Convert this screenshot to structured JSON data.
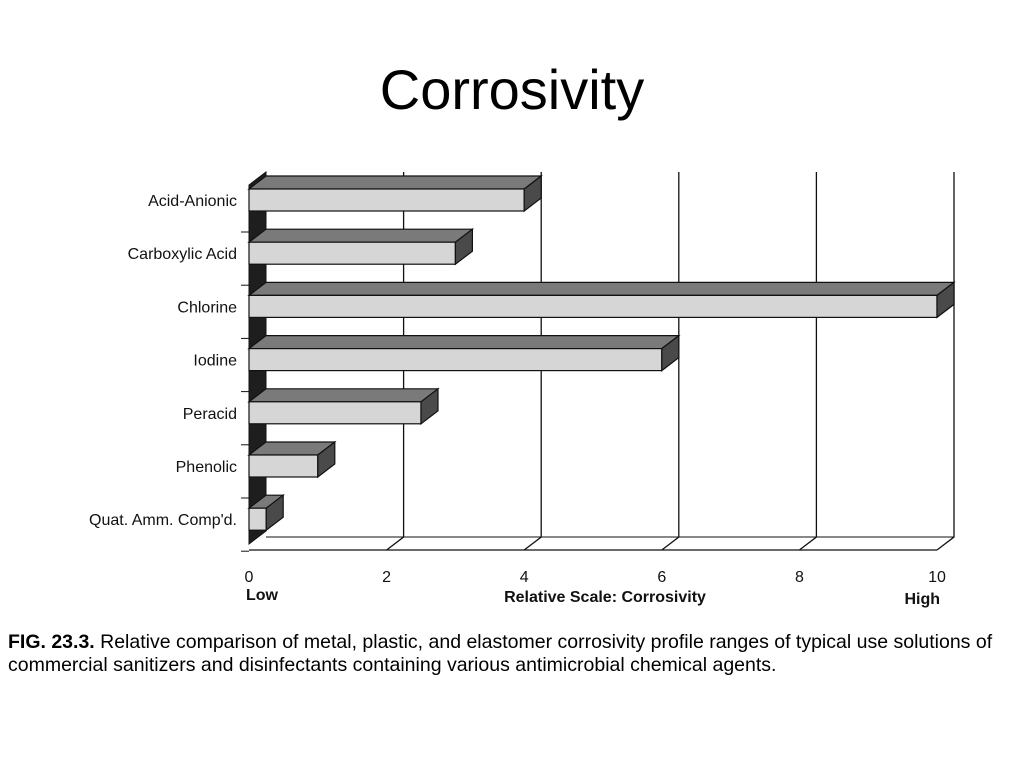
{
  "slide": {
    "title": "Corrosivity"
  },
  "caption": {
    "figure_number": "FIG. 23.3.",
    "text": " Relative comparison of metal, plastic, and elastomer corrosivity profile ranges of typical use solutions of commercial sanitizers and disinfectants containing various antimicrobial chemical agents."
  },
  "chart_data": {
    "type": "bar",
    "orientation": "horizontal",
    "style": "3d",
    "categories": [
      "Acid-Anionic",
      "Carboxylic Acid",
      "Chlorine",
      "Iodine",
      "Peracid",
      "Phenolic",
      "Quat. Amm. Comp'd."
    ],
    "values": [
      4,
      3,
      10,
      6,
      2.5,
      1,
      0.25
    ],
    "xlim": [
      0,
      10
    ],
    "xticks": [
      0,
      2,
      4,
      6,
      8,
      10
    ],
    "xlabel": "Relative Scale: Corrosivity",
    "low_label": "Low",
    "high_label": "High",
    "grid": "vertical",
    "colors": {
      "bar_front": "#d6d6d6",
      "bar_top": "#7a7a7a",
      "bar_side": "#4a4a4a",
      "wall": "#1e1e1e",
      "line": "#111111"
    }
  }
}
